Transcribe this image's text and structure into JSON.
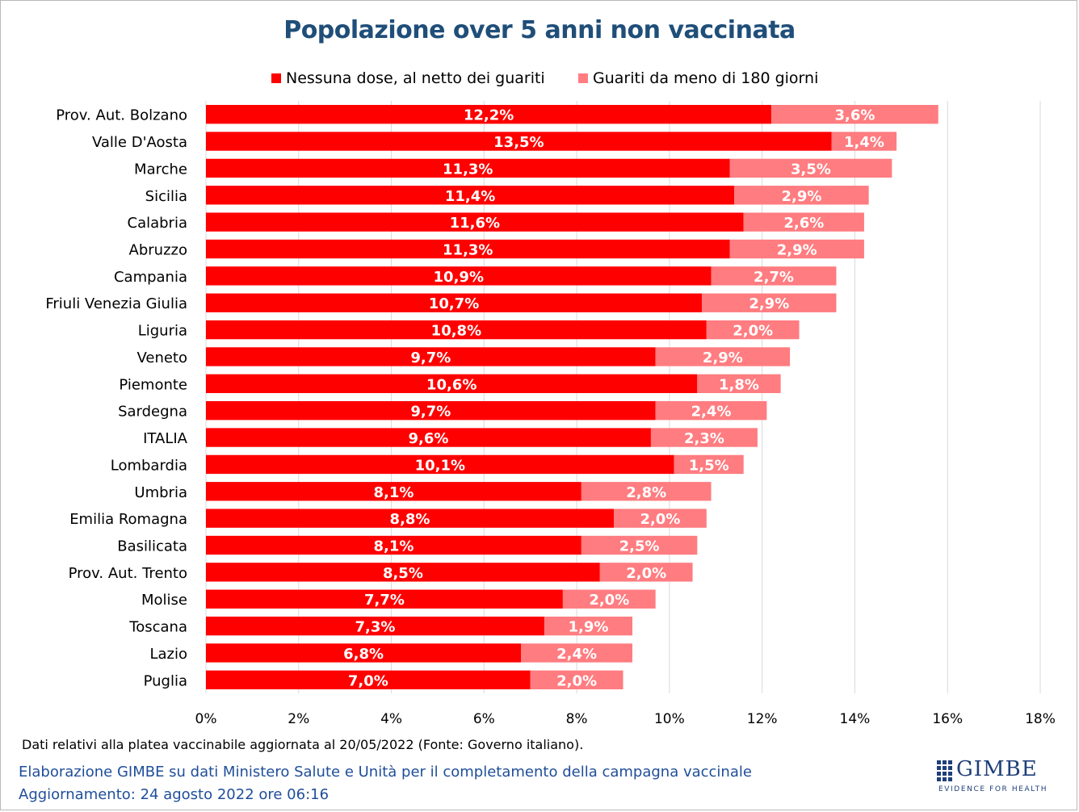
{
  "title": "Popolazione over 5 anni non vaccinata",
  "legend": {
    "series1": "Nessuna dose, al netto dei guariti",
    "series2": "Guariti da meno di 180 giorni"
  },
  "footer": {
    "note": "Dati relativi alla platea vaccinabile aggiornata al 20/05/2022 (Fonte: Governo italiano).",
    "credit": "Elaborazione GIMBE su dati Ministero Salute e Unità per il completamento della campagna vaccinale",
    "update": "Aggiornamento: 24 agosto 2022 ore 06:16"
  },
  "logo": {
    "name": "GIMBE",
    "tagline": "EVIDENCE FOR HEALTH"
  },
  "colors": {
    "series1": "#ff0000",
    "series2": "#ff7c80",
    "title": "#1f4e79",
    "grid": "#d9d9d9"
  },
  "chart_data": {
    "type": "bar",
    "orientation": "horizontal",
    "stacked": true,
    "title": "Popolazione over 5 anni non vaccinata",
    "categories": [
      "Prov. Aut. Bolzano",
      "Valle D'Aosta",
      "Marche",
      "Sicilia",
      "Calabria",
      "Abruzzo",
      "Campania",
      "Friuli Venezia Giulia",
      "Liguria",
      "Veneto",
      "Piemonte",
      "Sardegna",
      "ITALIA",
      "Lombardia",
      "Umbria",
      "Emilia Romagna",
      "Basilicata",
      "Prov. Aut. Trento",
      "Molise",
      "Toscana",
      "Lazio",
      "Puglia"
    ],
    "series": [
      {
        "name": "Nessuna dose, al netto dei guariti",
        "values": [
          12.2,
          13.5,
          11.3,
          11.4,
          11.6,
          11.3,
          10.9,
          10.7,
          10.8,
          9.7,
          10.6,
          9.7,
          9.6,
          10.1,
          8.1,
          8.8,
          8.1,
          8.5,
          7.7,
          7.3,
          6.8,
          7.0
        ],
        "labels": [
          "12,2%",
          "13,5%",
          "11,3%",
          "11,4%",
          "11,6%",
          "11,3%",
          "10,9%",
          "10,7%",
          "10,8%",
          "9,7%",
          "10,6%",
          "9,7%",
          "9,6%",
          "10,1%",
          "8,1%",
          "8,8%",
          "8,1%",
          "8,5%",
          "7,7%",
          "7,3%",
          "6,8%",
          "7,0%"
        ]
      },
      {
        "name": "Guariti da meno di 180 giorni",
        "values": [
          3.6,
          1.4,
          3.5,
          2.9,
          2.6,
          2.9,
          2.7,
          2.9,
          2.0,
          2.9,
          1.8,
          2.4,
          2.3,
          1.5,
          2.8,
          2.0,
          2.5,
          2.0,
          2.0,
          1.9,
          2.4,
          2.0
        ],
        "labels": [
          "3,6%",
          "1,4%",
          "3,5%",
          "2,9%",
          "2,6%",
          "2,9%",
          "2,7%",
          "2,9%",
          "2,0%",
          "2,9%",
          "1,8%",
          "2,4%",
          "2,3%",
          "1,5%",
          "2,8%",
          "2,0%",
          "2,5%",
          "2,0%",
          "2,0%",
          "1,9%",
          "2,4%",
          "2,0%"
        ]
      }
    ],
    "xlim": [
      0,
      18
    ],
    "xticks": [
      "0%",
      "2%",
      "4%",
      "6%",
      "8%",
      "10%",
      "12%",
      "14%",
      "16%",
      "18%"
    ],
    "grid": true,
    "legend_position": "top"
  }
}
